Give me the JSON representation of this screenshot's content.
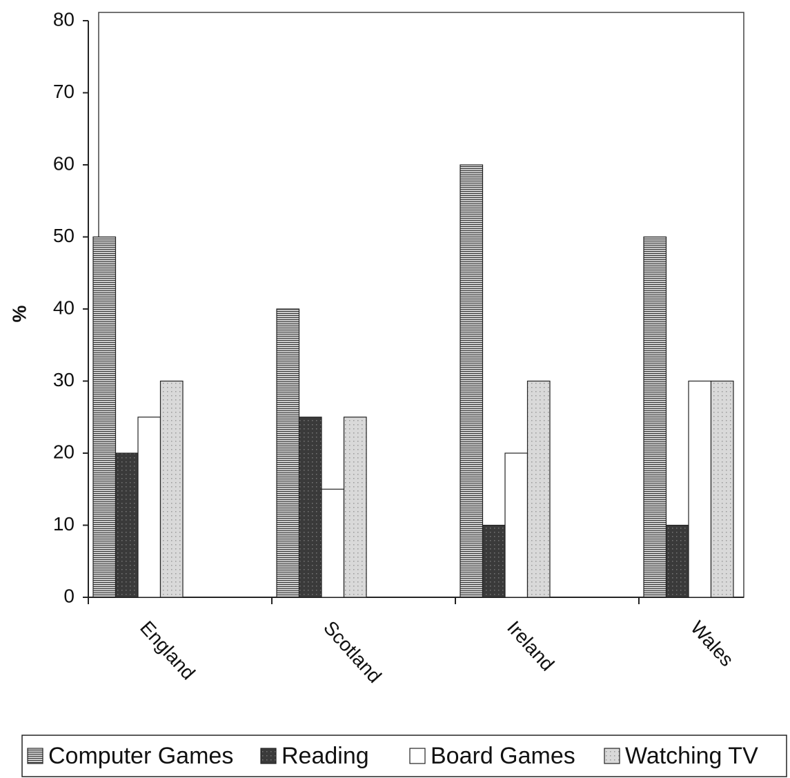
{
  "chart_data": {
    "type": "bar",
    "y_label": "%",
    "categories": [
      "England",
      "Scotland",
      "Ireland",
      "Wales"
    ],
    "series": [
      {
        "name": "Computer Games",
        "color": "#333333",
        "values": [
          50,
          40,
          60,
          50
        ]
      },
      {
        "name": "Reading",
        "color": "#3a3a3a",
        "values": [
          20,
          25,
          10,
          10
        ]
      },
      {
        "name": "Board Games",
        "color": "#ffffff",
        "values": [
          25,
          15,
          20,
          30
        ]
      },
      {
        "name": "Watching TV",
        "color": "#d9d9d9",
        "values": [
          30,
          25,
          30,
          30
        ]
      }
    ],
    "ylim": [
      0,
      80
    ],
    "yticks": [
      0,
      10,
      20,
      30,
      40,
      50,
      60,
      70,
      80
    ],
    "grid": false,
    "legend": "bottom"
  }
}
